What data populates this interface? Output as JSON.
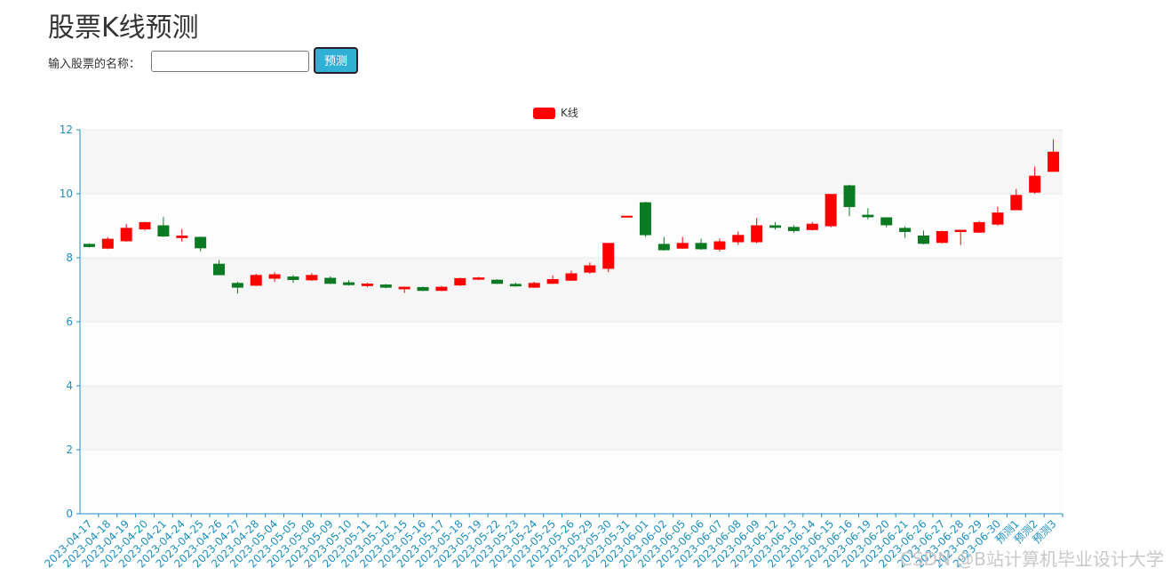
{
  "header": {
    "title": "股票K线预测"
  },
  "form": {
    "label": "输入股票的名称：",
    "button": "预测"
  },
  "watermark": "CSDN @B站计算机毕业设计大学",
  "chart_data": {
    "type": "candlestick",
    "categories": [
      "2023-04-17",
      "2023-04-18",
      "2023-04-19",
      "2023-04-20",
      "2023-04-21",
      "2023-04-24",
      "2023-04-25",
      "2023-04-26",
      "2023-04-27",
      "2023-04-28",
      "2023-05-04",
      "2023-05-05",
      "2023-05-08",
      "2023-05-09",
      "2023-05-10",
      "2023-05-11",
      "2023-05-12",
      "2023-05-15",
      "2023-05-16",
      "2023-05-17",
      "2023-05-18",
      "2023-05-19",
      "2023-05-22",
      "2023-05-23",
      "2023-05-24",
      "2023-05-25",
      "2023-05-26",
      "2023-05-29",
      "2023-05-30",
      "2023-05-31",
      "2023-06-01",
      "2023-06-02",
      "2023-06-05",
      "2023-06-06",
      "2023-06-07",
      "2023-06-08",
      "2023-06-09",
      "2023-06-12",
      "2023-06-13",
      "2023-06-14",
      "2023-06-15",
      "2023-06-16",
      "2023-06-19",
      "2023-06-20",
      "2023-06-21",
      "2023-06-26",
      "2023-06-27",
      "2023-06-28",
      "2023-06-29",
      "2023-06-30",
      "预测1",
      "预测2",
      "预测3"
    ],
    "series": [
      {
        "name": "K线",
        "color": "#ff0000",
        "down_color": "#0c7a23",
        "open": [
          8.42,
          8.3,
          8.53,
          8.9,
          9.0,
          8.63,
          8.64,
          7.8,
          7.2,
          7.14,
          7.36,
          7.4,
          7.31,
          7.36,
          7.22,
          7.13,
          7.15,
          7.03,
          7.07,
          6.98,
          7.15,
          7.33,
          7.3,
          7.17,
          7.08,
          7.2,
          7.3,
          7.55,
          7.67,
          9.27,
          9.72,
          8.42,
          8.3,
          8.45,
          8.27,
          8.5,
          8.5,
          9.0,
          8.95,
          8.88,
          9.0,
          10.25,
          9.33,
          9.25,
          8.92,
          8.68,
          8.48,
          8.82,
          8.8,
          9.05,
          9.5,
          10.05,
          10.7
        ],
        "close": [
          8.35,
          8.58,
          8.92,
          9.1,
          8.68,
          8.68,
          8.31,
          7.47,
          7.08,
          7.45,
          7.47,
          7.32,
          7.45,
          7.2,
          7.16,
          7.18,
          7.08,
          7.08,
          6.98,
          7.08,
          7.35,
          7.37,
          7.2,
          7.12,
          7.2,
          7.32,
          7.5,
          7.75,
          8.45,
          9.3,
          8.72,
          8.25,
          8.45,
          8.28,
          8.5,
          8.7,
          9.0,
          8.95,
          8.85,
          9.05,
          9.98,
          9.6,
          9.28,
          9.03,
          8.82,
          8.45,
          8.82,
          8.86,
          9.1,
          9.4,
          9.95,
          10.55,
          11.3
        ],
        "low": [
          8.32,
          8.27,
          8.5,
          8.85,
          8.65,
          8.5,
          8.2,
          7.47,
          6.88,
          7.12,
          7.25,
          7.22,
          7.28,
          7.18,
          7.13,
          7.08,
          7.05,
          6.9,
          6.96,
          6.96,
          7.12,
          7.3,
          7.18,
          7.1,
          7.06,
          7.18,
          7.28,
          7.5,
          7.55,
          9.27,
          8.65,
          8.22,
          8.28,
          8.25,
          8.2,
          8.4,
          8.45,
          8.88,
          8.78,
          8.85,
          8.95,
          9.3,
          9.2,
          8.95,
          8.62,
          8.42,
          8.45,
          8.4,
          8.78,
          9.0,
          9.5,
          10.0,
          10.7
        ],
        "high": [
          8.45,
          8.65,
          9.05,
          9.13,
          9.27,
          8.9,
          8.66,
          7.93,
          7.25,
          7.5,
          7.55,
          7.46,
          7.52,
          7.42,
          7.3,
          7.22,
          7.18,
          7.1,
          7.1,
          7.12,
          7.38,
          7.4,
          7.33,
          7.22,
          7.25,
          7.45,
          7.6,
          7.85,
          8.45,
          9.3,
          9.75,
          8.65,
          8.65,
          8.6,
          8.6,
          8.82,
          9.25,
          9.12,
          9.02,
          9.12,
          9.98,
          10.28,
          9.55,
          9.27,
          8.98,
          8.85,
          8.85,
          8.88,
          9.15,
          9.6,
          10.15,
          10.85,
          11.7
        ]
      }
    ],
    "ylim": [
      0,
      12
    ],
    "yticks": [
      0,
      2,
      4,
      6,
      8,
      10,
      12
    ],
    "split_area": true
  }
}
